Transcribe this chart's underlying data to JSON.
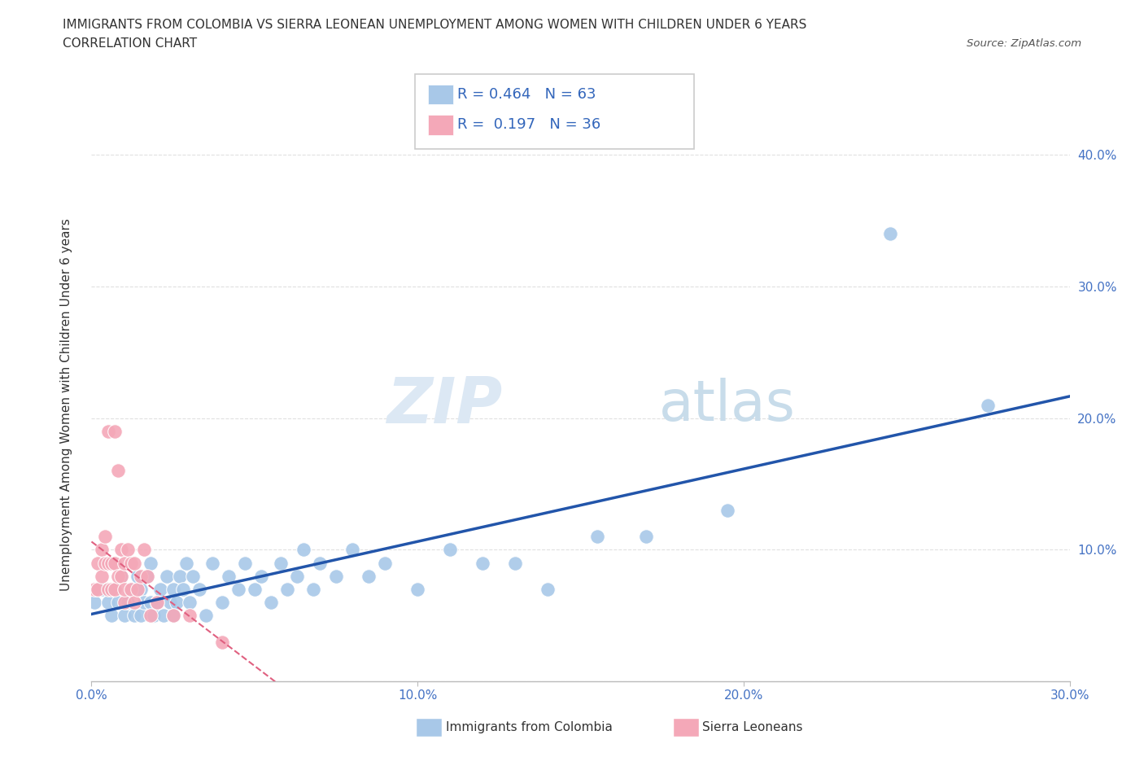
{
  "title_line1": "IMMIGRANTS FROM COLOMBIA VS SIERRA LEONEAN UNEMPLOYMENT AMONG WOMEN WITH CHILDREN UNDER 6 YEARS",
  "title_line2": "CORRELATION CHART",
  "source": "Source: ZipAtlas.com",
  "ylabel": "Unemployment Among Women with Children Under 6 years",
  "colombia_R": 0.464,
  "colombia_N": 63,
  "sierraleone_R": 0.197,
  "sierraleone_N": 36,
  "colombia_color": "#a8c8e8",
  "sierraleone_color": "#f4a8b8",
  "colombia_line_color": "#2255aa",
  "sierraleone_line_color": "#e06080",
  "xlim": [
    0.0,
    0.3
  ],
  "ylim": [
    0.0,
    0.42
  ],
  "colombia_x": [
    0.001,
    0.002,
    0.003,
    0.005,
    0.006,
    0.007,
    0.008,
    0.009,
    0.01,
    0.011,
    0.012,
    0.013,
    0.014,
    0.015,
    0.015,
    0.016,
    0.017,
    0.018,
    0.018,
    0.019,
    0.02,
    0.021,
    0.022,
    0.023,
    0.024,
    0.025,
    0.025,
    0.026,
    0.027,
    0.028,
    0.029,
    0.03,
    0.031,
    0.033,
    0.035,
    0.037,
    0.04,
    0.042,
    0.045,
    0.047,
    0.05,
    0.052,
    0.055,
    0.058,
    0.06,
    0.063,
    0.065,
    0.068,
    0.07,
    0.075,
    0.08,
    0.085,
    0.09,
    0.1,
    0.11,
    0.12,
    0.13,
    0.14,
    0.155,
    0.17,
    0.195,
    0.245,
    0.275
  ],
  "colombia_y": [
    0.06,
    0.07,
    0.07,
    0.06,
    0.05,
    0.07,
    0.06,
    0.08,
    0.05,
    0.06,
    0.07,
    0.05,
    0.08,
    0.05,
    0.07,
    0.06,
    0.08,
    0.06,
    0.09,
    0.05,
    0.06,
    0.07,
    0.05,
    0.08,
    0.06,
    0.05,
    0.07,
    0.06,
    0.08,
    0.07,
    0.09,
    0.06,
    0.08,
    0.07,
    0.05,
    0.09,
    0.06,
    0.08,
    0.07,
    0.09,
    0.07,
    0.08,
    0.06,
    0.09,
    0.07,
    0.08,
    0.1,
    0.07,
    0.09,
    0.08,
    0.1,
    0.08,
    0.09,
    0.07,
    0.1,
    0.09,
    0.09,
    0.07,
    0.11,
    0.11,
    0.13,
    0.34,
    0.21
  ],
  "sierraleone_x": [
    0.001,
    0.002,
    0.002,
    0.003,
    0.003,
    0.004,
    0.004,
    0.005,
    0.005,
    0.005,
    0.006,
    0.006,
    0.007,
    0.007,
    0.007,
    0.008,
    0.008,
    0.009,
    0.009,
    0.01,
    0.01,
    0.01,
    0.011,
    0.012,
    0.012,
    0.013,
    0.013,
    0.014,
    0.015,
    0.016,
    0.017,
    0.018,
    0.02,
    0.025,
    0.03,
    0.04
  ],
  "sierraleone_y": [
    0.07,
    0.07,
    0.09,
    0.08,
    0.1,
    0.09,
    0.11,
    0.07,
    0.09,
    0.19,
    0.07,
    0.09,
    0.07,
    0.09,
    0.19,
    0.08,
    0.16,
    0.08,
    0.1,
    0.06,
    0.07,
    0.09,
    0.1,
    0.07,
    0.09,
    0.06,
    0.09,
    0.07,
    0.08,
    0.1,
    0.08,
    0.05,
    0.06,
    0.05,
    0.05,
    0.03
  ],
  "background_color": "#ffffff",
  "grid_color": "#dddddd",
  "legend_bottom_left": [
    "Immigrants from Colombia",
    "Sierra Leoneans"
  ]
}
